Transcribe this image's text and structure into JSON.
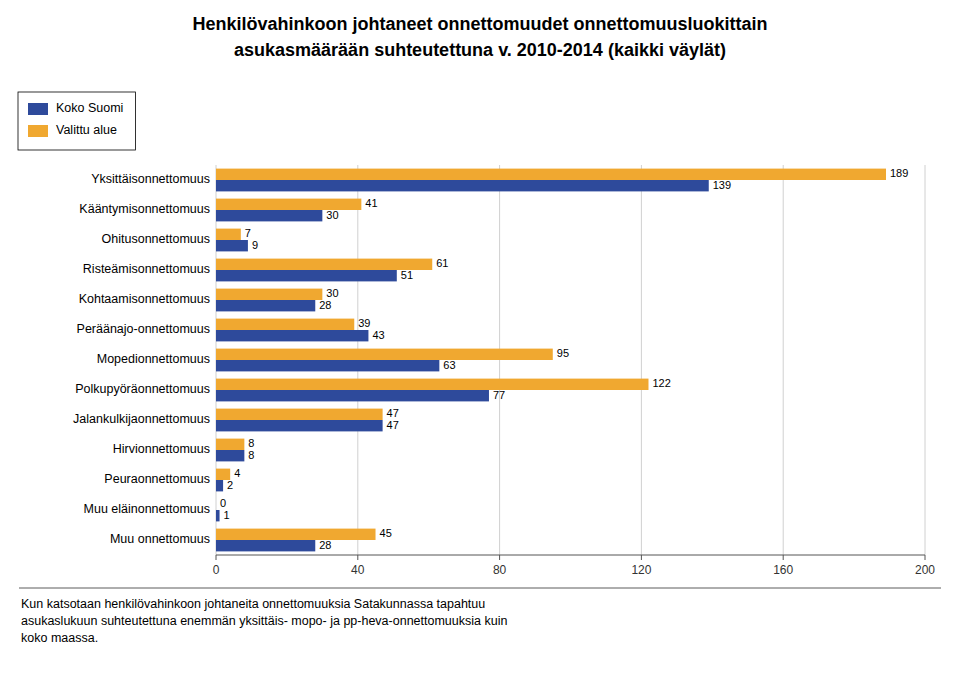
{
  "chart_data": {
    "type": "bar",
    "orientation": "horizontal",
    "title": "Henkilövahinkoon johtaneet onnettomuudet onnettomuusluokittain",
    "subtitle": "asukasmäärään suhteutettuna v. 2010-2014 (kaikki väylät)",
    "categories": [
      "Yksittäisonnettomuus",
      "Kääntymisonnettomuus",
      "Ohitusonnettomuus",
      "Risteämisonnettomuus",
      "Kohtaamisonnettomuus",
      "Peräänajo-onnettomuus",
      "Mopedionnettomuus",
      "Polkupyöräonnettomuus",
      "Jalankulkijaonnettomuus",
      "Hirvionnettomuus",
      "Peuraonnettomuus",
      "Muu eläinonnettomuus",
      "Muu onnettomuus"
    ],
    "series": [
      {
        "name": "Koko Suomi",
        "color": "#2E4A9B",
        "values": [
          139,
          30,
          9,
          51,
          28,
          43,
          63,
          77,
          47,
          8,
          2,
          1,
          28
        ]
      },
      {
        "name": "Valittu alue",
        "color": "#F0A830",
        "values": [
          189,
          41,
          7,
          61,
          30,
          39,
          95,
          122,
          47,
          8,
          4,
          0,
          45
        ]
      }
    ],
    "xlim": [
      0,
      200
    ],
    "xticks": [
      0,
      40,
      80,
      120,
      160,
      200
    ],
    "grid": true,
    "legend": "upper left",
    "data_labels": true,
    "annotations": [
      "Kun katsotaan henkilövahinkoon johtaneita onnettomuuksia Satakunnassa tapahtuu\nasukaslukuun suhteutettuna enemmän yksittäis- mopo- ja pp-heva-onnettomuuksia kuin\nkoko maassa."
    ]
  }
}
